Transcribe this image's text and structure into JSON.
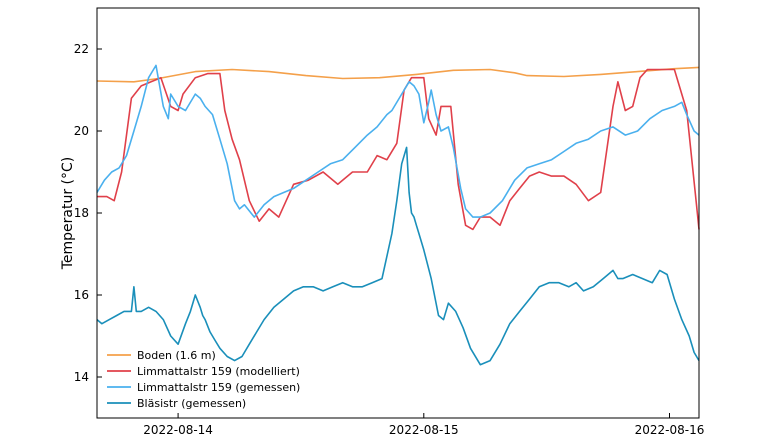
{
  "chart_data": {
    "type": "line",
    "title": "",
    "xlabel": "",
    "ylabel": "Temperatur (°C)",
    "xlim": [
      0,
      2.45
    ],
    "ylim": [
      13.0,
      23.0
    ],
    "x_ticks": [
      {
        "value": 0.33,
        "label": "2022-08-14"
      },
      {
        "value": 1.33,
        "label": "2022-08-15"
      },
      {
        "value": 2.33,
        "label": "2022-08-16"
      }
    ],
    "y_ticks": [
      {
        "value": 14,
        "label": "14"
      },
      {
        "value": 16,
        "label": "16"
      },
      {
        "value": 18,
        "label": "18"
      },
      {
        "value": 20,
        "label": "20"
      },
      {
        "value": 22,
        "label": "22"
      }
    ],
    "legend_position": "bottom-left",
    "series": [
      {
        "name": "Boden (1.6 m)",
        "color": "#f4a04a",
        "x": [
          0.0,
          0.15,
          0.25,
          0.4,
          0.55,
          0.7,
          0.85,
          1.0,
          1.15,
          1.3,
          1.45,
          1.6,
          1.7,
          1.75,
          1.9,
          2.05,
          2.2,
          2.35,
          2.45
        ],
        "y": [
          21.22,
          21.2,
          21.28,
          21.45,
          21.5,
          21.45,
          21.35,
          21.28,
          21.3,
          21.38,
          21.48,
          21.5,
          21.42,
          21.35,
          21.33,
          21.38,
          21.45,
          21.52,
          21.55
        ]
      },
      {
        "name": "Limmattalstr 159 (modelliert)",
        "color": "#e0404a",
        "x": [
          0.0,
          0.04,
          0.07,
          0.1,
          0.14,
          0.18,
          0.22,
          0.26,
          0.3,
          0.33,
          0.35,
          0.4,
          0.45,
          0.5,
          0.52,
          0.55,
          0.58,
          0.62,
          0.66,
          0.7,
          0.74,
          0.8,
          0.86,
          0.92,
          0.98,
          1.04,
          1.1,
          1.14,
          1.18,
          1.22,
          1.25,
          1.28,
          1.3,
          1.33,
          1.35,
          1.38,
          1.4,
          1.44,
          1.47,
          1.5,
          1.53,
          1.56,
          1.6,
          1.64,
          1.68,
          1.72,
          1.76,
          1.8,
          1.85,
          1.9,
          1.95,
          2.0,
          2.05,
          2.1,
          2.12,
          2.15,
          2.18,
          2.21,
          2.24,
          2.27,
          2.3,
          2.33,
          2.35,
          2.4,
          2.44,
          2.45
        ],
        "y": [
          18.4,
          18.4,
          18.3,
          19.0,
          20.8,
          21.1,
          21.2,
          21.3,
          20.6,
          20.5,
          20.9,
          21.3,
          21.4,
          21.4,
          20.5,
          19.8,
          19.3,
          18.3,
          17.8,
          18.1,
          17.9,
          18.7,
          18.8,
          19.0,
          18.7,
          19.0,
          19.0,
          19.4,
          19.3,
          19.7,
          21.0,
          21.3,
          21.3,
          21.3,
          20.3,
          19.9,
          20.6,
          20.6,
          18.7,
          17.7,
          17.6,
          17.9,
          17.9,
          17.7,
          18.3,
          18.6,
          18.9,
          19.0,
          18.9,
          18.9,
          18.7,
          18.3,
          18.5,
          20.6,
          21.2,
          20.5,
          20.6,
          21.3,
          21.5,
          21.5,
          21.5,
          21.5,
          21.5,
          20.5,
          18.2,
          17.6
        ]
      },
      {
        "name": "Limmattalstr 159 (gemessen)",
        "color": "#4ab0ee",
        "x": [
          0.0,
          0.03,
          0.06,
          0.09,
          0.12,
          0.15,
          0.18,
          0.21,
          0.24,
          0.27,
          0.29,
          0.3,
          0.33,
          0.36,
          0.4,
          0.42,
          0.44,
          0.47,
          0.5,
          0.53,
          0.56,
          0.58,
          0.6,
          0.64,
          0.68,
          0.72,
          0.76,
          0.8,
          0.85,
          0.9,
          0.95,
          1.0,
          1.05,
          1.1,
          1.14,
          1.18,
          1.2,
          1.24,
          1.27,
          1.29,
          1.31,
          1.33,
          1.35,
          1.36,
          1.38,
          1.4,
          1.43,
          1.45,
          1.48,
          1.5,
          1.53,
          1.56,
          1.6,
          1.65,
          1.7,
          1.75,
          1.8,
          1.85,
          1.9,
          1.95,
          2.0,
          2.05,
          2.1,
          2.15,
          2.2,
          2.25,
          2.3,
          2.35,
          2.38,
          2.4,
          2.43,
          2.45
        ],
        "y": [
          18.5,
          18.8,
          19.0,
          19.1,
          19.4,
          20.0,
          20.6,
          21.3,
          21.6,
          20.6,
          20.3,
          20.9,
          20.6,
          20.5,
          20.9,
          20.8,
          20.6,
          20.4,
          19.8,
          19.2,
          18.3,
          18.1,
          18.2,
          17.9,
          18.2,
          18.4,
          18.5,
          18.6,
          18.8,
          19.0,
          19.2,
          19.3,
          19.6,
          19.9,
          20.1,
          20.4,
          20.5,
          20.9,
          21.2,
          21.1,
          20.9,
          20.2,
          20.7,
          21.0,
          20.4,
          20.0,
          20.1,
          19.6,
          18.6,
          18.1,
          17.9,
          17.9,
          18.0,
          18.3,
          18.8,
          19.1,
          19.2,
          19.3,
          19.5,
          19.7,
          19.8,
          20.0,
          20.1,
          19.9,
          20.0,
          20.3,
          20.5,
          20.6,
          20.7,
          20.4,
          20.0,
          19.9
        ]
      },
      {
        "name": "Bläsistr (gemessen)",
        "color": "#1a8fba",
        "x": [
          0.0,
          0.02,
          0.05,
          0.08,
          0.11,
          0.14,
          0.15,
          0.16,
          0.18,
          0.21,
          0.24,
          0.27,
          0.3,
          0.33,
          0.36,
          0.38,
          0.4,
          0.42,
          0.43,
          0.44,
          0.46,
          0.48,
          0.5,
          0.53,
          0.56,
          0.59,
          0.62,
          0.65,
          0.68,
          0.72,
          0.76,
          0.8,
          0.84,
          0.88,
          0.92,
          0.96,
          1.0,
          1.04,
          1.08,
          1.12,
          1.16,
          1.2,
          1.22,
          1.24,
          1.26,
          1.27,
          1.28,
          1.29,
          1.3,
          1.31,
          1.33,
          1.36,
          1.39,
          1.41,
          1.43,
          1.46,
          1.49,
          1.52,
          1.56,
          1.6,
          1.64,
          1.68,
          1.72,
          1.76,
          1.8,
          1.84,
          1.88,
          1.92,
          1.95,
          1.98,
          2.02,
          2.06,
          2.1,
          2.12,
          2.14,
          2.18,
          2.22,
          2.26,
          2.29,
          2.32,
          2.35,
          2.38,
          2.41,
          2.43,
          2.45
        ],
        "y": [
          15.4,
          15.3,
          15.4,
          15.5,
          15.6,
          15.6,
          16.2,
          15.6,
          15.6,
          15.7,
          15.6,
          15.4,
          15.0,
          14.8,
          15.3,
          15.6,
          16.0,
          15.7,
          15.5,
          15.4,
          15.1,
          14.9,
          14.7,
          14.5,
          14.4,
          14.5,
          14.8,
          15.1,
          15.4,
          15.7,
          15.9,
          16.1,
          16.2,
          16.2,
          16.1,
          16.2,
          16.3,
          16.2,
          16.2,
          16.3,
          16.4,
          17.5,
          18.3,
          19.2,
          19.6,
          18.5,
          18.0,
          17.9,
          17.7,
          17.5,
          17.1,
          16.4,
          15.5,
          15.4,
          15.8,
          15.6,
          15.2,
          14.7,
          14.3,
          14.4,
          14.8,
          15.3,
          15.6,
          15.9,
          16.2,
          16.3,
          16.3,
          16.2,
          16.3,
          16.1,
          16.2,
          16.4,
          16.6,
          16.4,
          16.4,
          16.5,
          16.4,
          16.3,
          16.6,
          16.5,
          15.9,
          15.4,
          15.0,
          14.6,
          14.4
        ]
      }
    ]
  }
}
